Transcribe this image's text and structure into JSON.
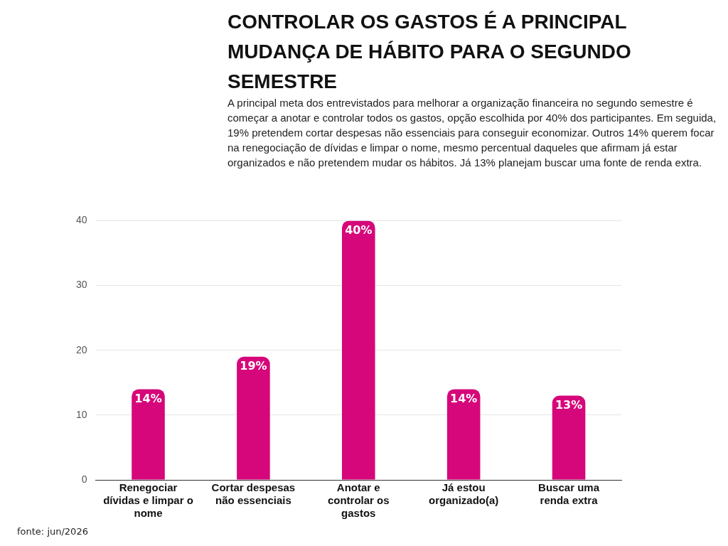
{
  "chart_data": {
    "type": "bar",
    "title": "CONTROLAR OS GASTOS É A PRINCIPAL MUDANÇA DE HÁBITO PARA O SEGUNDO SEMESTRE",
    "subtitle": "A principal meta dos entrevistados para melhorar a organização financeira no segundo semestre é começar a anotar e controlar todos os gastos, opção escolhida por 40% dos participantes. Em seguida, 19% pretendem cortar despesas não essenciais para conseguir economizar. Outros 14% querem focar na renegociação de dívidas e limpar o nome, mesmo percentual daqueles que afirmam já estar organizados e não pretendem mudar os hábitos. Já 13% planejam buscar uma fonte de renda extra.",
    "categories": [
      "Renegociar dívidas e limpar o nome",
      "Cortar despesas não essenciais",
      "Anotar e controlar os gastos",
      "Já estou organizado(a)",
      "Buscar uma renda extra"
    ],
    "values": [
      14,
      19,
      40,
      14,
      13
    ],
    "value_labels": [
      "14%",
      "19%",
      "40%",
      "14%",
      "13%"
    ],
    "color": "#d6077a",
    "ylim": [
      0,
      40
    ],
    "yticks": [
      0,
      10,
      20,
      30,
      40
    ],
    "grid": "y",
    "legend": false,
    "annotations": [
      "fonte: jun/2026"
    ]
  }
}
